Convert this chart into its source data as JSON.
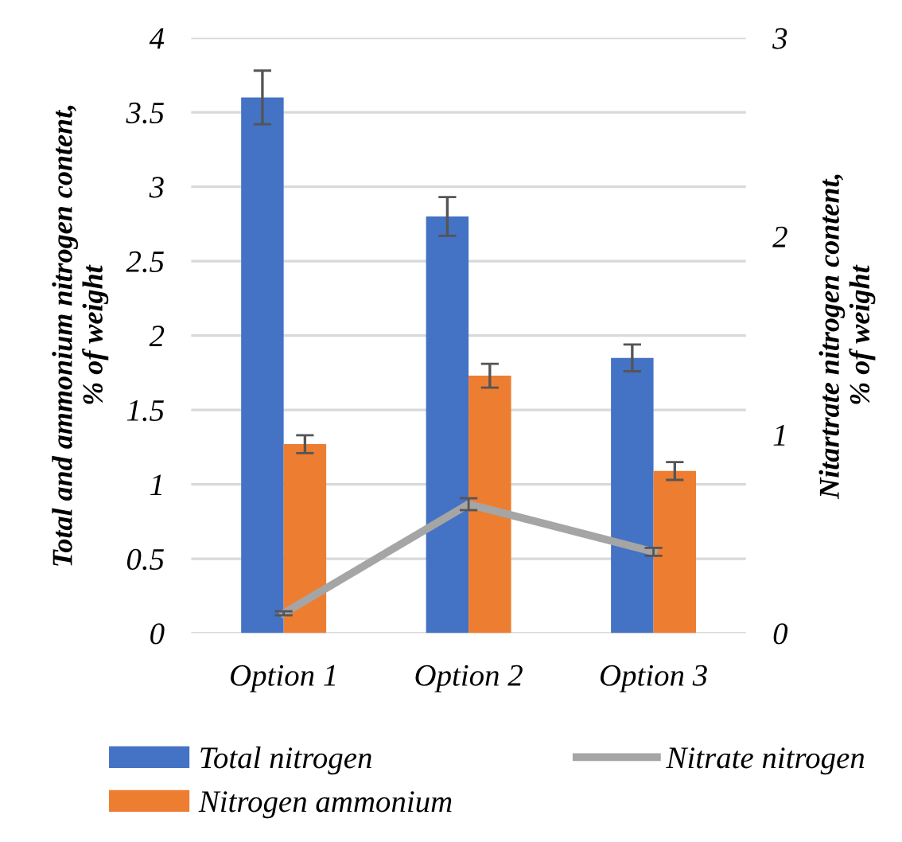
{
  "chart_data": {
    "type": "bar",
    "ylabel": "Total and ammonium nitrogen content,\n% of weight",
    "y2label": "Nitartrate nitrogen content,\n% of weight",
    "categories": [
      "Option 1",
      "Option 2",
      "Option 3"
    ],
    "series": [
      {
        "name": "Total nitrogen",
        "color": "#4472c4",
        "values": [
          3.6,
          2.8,
          1.85
        ],
        "errors": [
          0.18,
          0.13,
          0.09
        ]
      },
      {
        "name": "Nitrogen ammonium",
        "color": "#ed7d31",
        "values": [
          1.27,
          1.73,
          1.09
        ],
        "errors": [
          0.06,
          0.08,
          0.06
        ]
      },
      {
        "name": "Nitrate nitrogen",
        "type": "line",
        "axis": "y2",
        "color": "#a5a5a5",
        "values": [
          0.1,
          0.65,
          0.41
        ],
        "errors": [
          0.01,
          0.03,
          0.02
        ]
      }
    ],
    "ylim": [
      0,
      4
    ],
    "yticks": [
      0,
      0.5,
      1,
      1.5,
      2,
      2.5,
      3,
      3.5,
      4
    ],
    "y2lim": [
      0,
      3
    ],
    "y2ticks": [
      0,
      1,
      2,
      3
    ],
    "grid": "y",
    "legend": "bottom",
    "marker": "none",
    "line_style": "solid"
  }
}
